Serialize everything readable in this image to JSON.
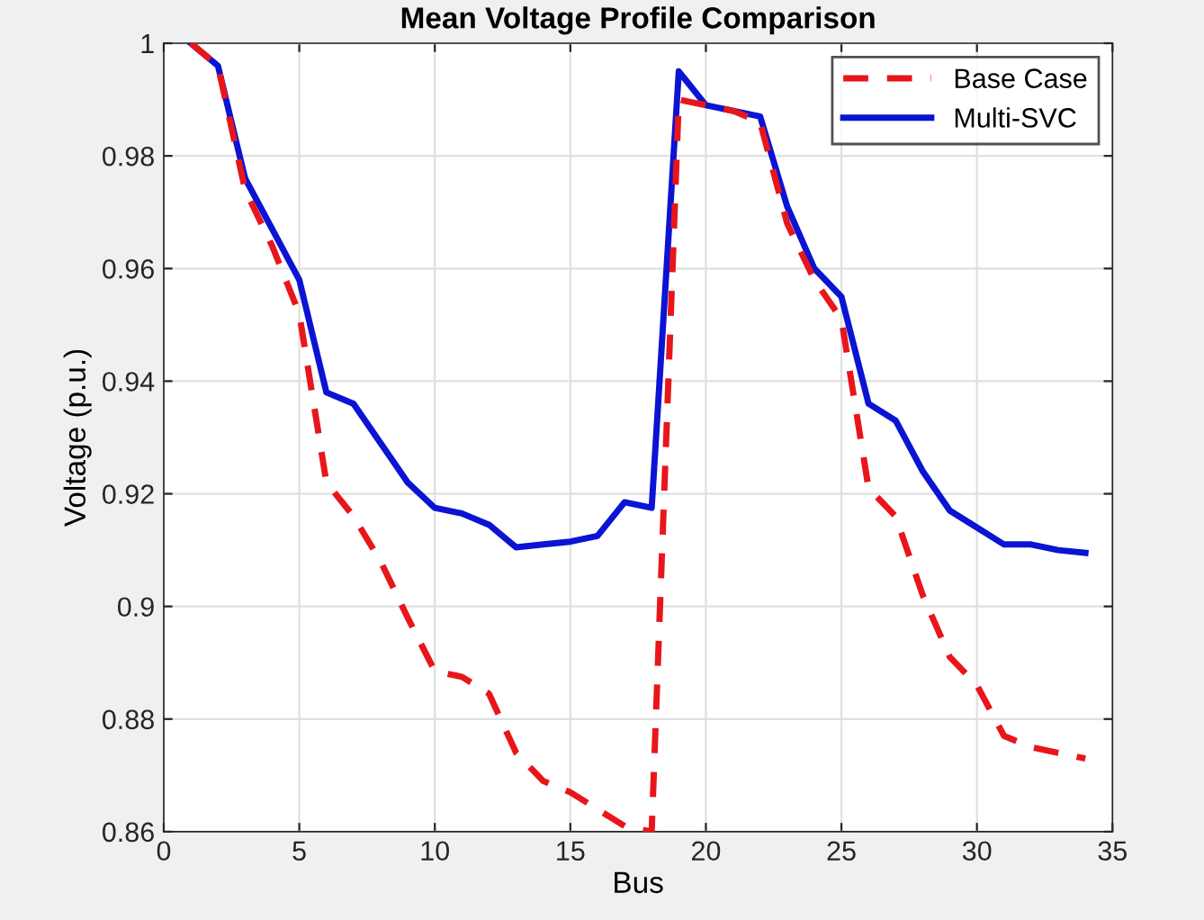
{
  "chart_data": {
    "type": "line",
    "title": "Mean Voltage Profile Comparison",
    "xlabel": "Bus",
    "ylabel": "Voltage (p.u.)",
    "x": [
      1,
      2,
      3,
      4,
      5,
      6,
      7,
      8,
      9,
      10,
      11,
      12,
      13,
      14,
      15,
      16,
      17,
      18,
      19,
      20,
      21,
      22,
      23,
      24,
      25,
      26,
      27,
      28,
      29,
      30,
      31,
      32,
      33,
      34
    ],
    "series": [
      {
        "name": "Base Case",
        "color": "#e8161b",
        "line_style": "dashed",
        "values": [
          1.0,
          0.996,
          0.974,
          0.964,
          0.952,
          0.922,
          0.916,
          0.908,
          0.898,
          0.8885,
          0.8875,
          0.8845,
          0.874,
          0.869,
          0.867,
          0.864,
          0.861,
          0.86,
          0.99,
          0.989,
          0.988,
          0.986,
          0.968,
          0.958,
          0.951,
          0.921,
          0.916,
          0.902,
          0.891,
          0.886,
          0.877,
          0.875,
          0.874,
          0.873
        ]
      },
      {
        "name": "Multi-SVC",
        "color": "#0a14d2",
        "line_style": "solid",
        "values": [
          1.0,
          0.996,
          0.976,
          0.967,
          0.958,
          0.938,
          0.936,
          0.929,
          0.922,
          0.9175,
          0.9165,
          0.9145,
          0.9105,
          0.911,
          0.9115,
          0.9125,
          0.9185,
          0.9175,
          0.995,
          0.989,
          0.988,
          0.987,
          0.971,
          0.96,
          0.955,
          0.936,
          0.933,
          0.924,
          0.917,
          0.914,
          0.911,
          0.911,
          0.91,
          0.9095
        ]
      }
    ],
    "xlim": [
      0,
      35
    ],
    "xticks": [
      0,
      5,
      10,
      15,
      20,
      25,
      30,
      35
    ],
    "ylim": [
      0.86,
      1
    ],
    "yticks": [
      0.86,
      0.88,
      0.9,
      0.92,
      0.94,
      0.96,
      0.98,
      1
    ],
    "grid": true,
    "legend": "top right",
    "marker": "none"
  }
}
